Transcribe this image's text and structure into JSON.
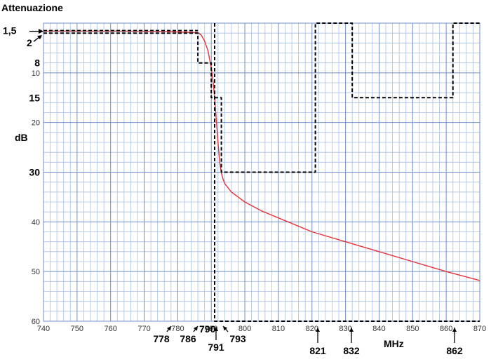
{
  "chart_data": {
    "type": "line",
    "title": "Attenuazione",
    "xlabel": "MHz",
    "ylabel": "dB",
    "xlim": [
      740,
      870
    ],
    "ylim": [
      0,
      60
    ],
    "y_inverted": true,
    "grid": true,
    "x_ticks": [
      740,
      750,
      760,
      770,
      780,
      790,
      800,
      810,
      820,
      830,
      840,
      850,
      860,
      870
    ],
    "y_ticks": [
      10,
      20,
      40,
      50,
      60
    ],
    "y_markers": [
      "1,5",
      "2",
      "8",
      "15",
      "30"
    ],
    "x_markers": [
      "778",
      "786",
      "790",
      "791",
      "793",
      "821",
      "832",
      "862"
    ],
    "series": [
      {
        "style": "solid",
        "color": "#e8303a",
        "x": [
          740,
          760,
          775,
          786,
          787,
          788,
          789,
          790,
          790.5,
          791,
          791.5,
          792,
          792.5,
          793,
          793.5,
          794,
          796,
          800,
          805,
          810,
          820,
          830,
          840,
          850,
          860,
          870
        ],
        "y": [
          1.6,
          1.6,
          1.65,
          1.9,
          2.4,
          3.6,
          5.5,
          9,
          11.5,
          15,
          19.5,
          24,
          28,
          30.2,
          31.4,
          32.3,
          34,
          36,
          37.8,
          39.2,
          42,
          44,
          46,
          48,
          50,
          51.8
        ]
      },
      {
        "style": "dashed",
        "color": "#000000",
        "x": [
          740,
          778,
          778,
          786,
          786,
          790,
          790,
          791,
          791,
          793,
          793,
          821,
          821,
          832,
          832,
          862,
          862,
          870
        ],
        "y": [
          2,
          2,
          2,
          2,
          8,
          8,
          15,
          15,
          15,
          15,
          30,
          30,
          0,
          0,
          15,
          15,
          0,
          0
        ]
      },
      {
        "style": "dashed",
        "color": "#000000",
        "x": [
          740,
          786
        ],
        "y": [
          1.5,
          1.5
        ]
      },
      {
        "style": "dashed",
        "color": "#000000",
        "x": [
          791,
          791,
          870
        ],
        "y": [
          0,
          60,
          60
        ]
      }
    ]
  }
}
